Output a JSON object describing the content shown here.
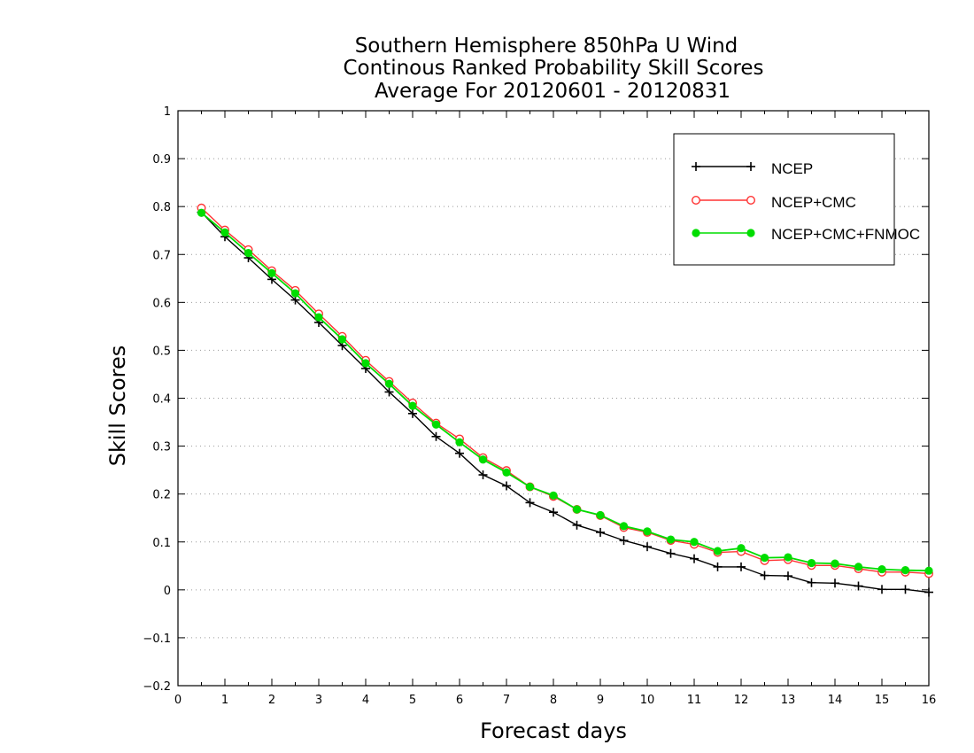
{
  "chart_data": {
    "type": "line",
    "title": [
      "Southern Hemisphere 850hPa U Wind",
      "Continous Ranked Probability Skill Scores",
      "Average For 20120601 - 20120831"
    ],
    "xlabel": "Forecast days",
    "ylabel": "Skill Scores",
    "xlim": [
      0,
      16
    ],
    "ylim": [
      -0.2,
      1
    ],
    "xticks": [
      0,
      1,
      2,
      3,
      4,
      5,
      6,
      7,
      8,
      9,
      10,
      11,
      12,
      13,
      14,
      15,
      16
    ],
    "xtick_labels": [
      "0",
      "1",
      "2",
      "3",
      "4",
      "5",
      "6",
      "7",
      "8",
      "9",
      "10",
      "11",
      "12",
      "13",
      "14",
      "15",
      "16"
    ],
    "yticks": [
      -0.2,
      -0.1,
      0,
      0.1,
      0.2,
      0.3,
      0.4,
      0.5,
      0.6,
      0.7,
      0.8,
      0.9,
      1
    ],
    "ytick_labels": [
      "−0.2",
      "−0.1",
      "0",
      "0.1",
      "0.2",
      "0.3",
      "0.4",
      "0.5",
      "0.6",
      "0.7",
      "0.8",
      "0.9",
      "1"
    ],
    "grid": "horizontal dotted",
    "legend_position": "top-right",
    "x": [
      0.5,
      1,
      1.5,
      2,
      2.5,
      3,
      3.5,
      4,
      4.5,
      5,
      5.5,
      6,
      6.5,
      7,
      7.5,
      8,
      8.5,
      9,
      9.5,
      10,
      10.5,
      11,
      11.5,
      12,
      12.5,
      13,
      13.5,
      14,
      14.5,
      15,
      15.5,
      16
    ],
    "series": [
      {
        "name": "NCEP",
        "color": "#000000",
        "marker": "plus",
        "values": [
          0.788,
          0.737,
          0.693,
          0.648,
          0.605,
          0.558,
          0.51,
          0.462,
          0.413,
          0.368,
          0.32,
          0.285,
          0.24,
          0.217,
          0.182,
          0.162,
          0.135,
          0.12,
          0.103,
          0.09,
          0.076,
          0.065,
          0.048,
          0.048,
          0.03,
          0.029,
          0.015,
          0.014,
          0.008,
          0.001,
          0.001,
          -0.005
        ]
      },
      {
        "name": "NCEP+CMC",
        "color": "#ff3333",
        "marker": "open-circle",
        "values": [
          0.797,
          0.751,
          0.71,
          0.666,
          0.625,
          0.576,
          0.529,
          0.479,
          0.435,
          0.39,
          0.348,
          0.315,
          0.276,
          0.249,
          0.215,
          0.195,
          0.168,
          0.155,
          0.13,
          0.12,
          0.103,
          0.095,
          0.078,
          0.08,
          0.061,
          0.063,
          0.051,
          0.051,
          0.044,
          0.037,
          0.037,
          0.034
        ]
      },
      {
        "name": "NCEP+CMC+FNMOC",
        "color": "#00dd00",
        "marker": "filled-circle",
        "values": [
          0.787,
          0.746,
          0.703,
          0.661,
          0.619,
          0.569,
          0.523,
          0.473,
          0.43,
          0.384,
          0.345,
          0.308,
          0.272,
          0.245,
          0.215,
          0.197,
          0.168,
          0.156,
          0.133,
          0.122,
          0.105,
          0.1,
          0.081,
          0.087,
          0.067,
          0.068,
          0.056,
          0.055,
          0.048,
          0.043,
          0.041,
          0.04
        ]
      }
    ]
  }
}
